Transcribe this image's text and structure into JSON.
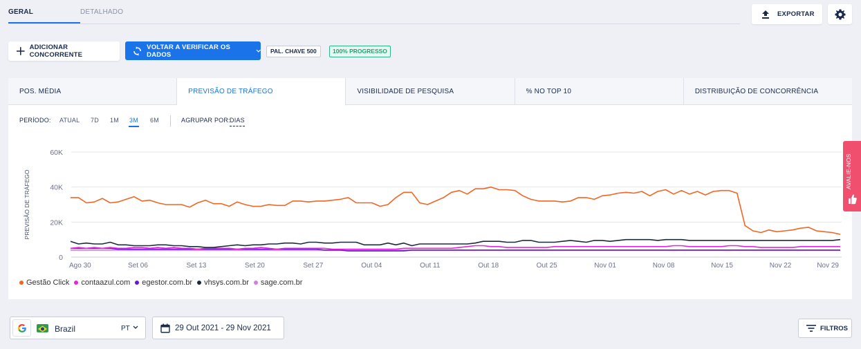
{
  "top_tabs": {
    "geral": "GERAL",
    "detalhado": "DETALHADO"
  },
  "toolbar": {
    "export_label": "EXPORTAR",
    "add_competitor_label": "ADICIONAR CONCORRENTE",
    "reverify_label": "VOLTAR A VERIFICAR OS DADOS",
    "keywords_badge": "PAL. CHAVE 500",
    "progress_badge": "100% PROGRESSO"
  },
  "metric_tabs": [
    "POS. MÉDIA",
    "PREVISÃO DE TRÁFEGO",
    "VISIBILIDADE DE PESQUISA",
    "% NO TOP 10",
    "DISTRIBUIÇÃO DE CONCORRÊNCIA"
  ],
  "active_metric_tab": 1,
  "period": {
    "label": "PERÍODO:",
    "options": [
      "ATUAL",
      "7D",
      "1M",
      "3M",
      "6M"
    ],
    "selected": "3M",
    "group_label": "AGRUPAR POR:",
    "group_value": "DIAS"
  },
  "bottom": {
    "country": "Brazil",
    "language": "PT",
    "date_range": "29 Out 2021 - 29 Nov 2021",
    "filters_label": "FILTROS"
  },
  "feedback_label": "AVALIE-NOS",
  "colors": {
    "accent": "#1a73e8",
    "gestao": "#f26522",
    "contaazul": "#e524e0",
    "egestor": "#6a17d0",
    "vhsys": "#1b2a3a",
    "sage": "#d27ee0"
  },
  "chart_data": {
    "type": "line",
    "ylabel": "PREVISÃO DE TRÁFEGO",
    "xlabel": "",
    "ylim": [
      0,
      60000
    ],
    "yticks": [
      0,
      20000,
      40000,
      60000
    ],
    "ytick_labels": [
      "0",
      "20K",
      "40K",
      "60K"
    ],
    "x_tick_labels": [
      "Ago 30",
      "Set 06",
      "Set 13",
      "Set 20",
      "Set 27",
      "Out 04",
      "Out 11",
      "Out 18",
      "Out 25",
      "Nov 01",
      "Nov 08",
      "Nov 15",
      "Nov 22",
      "Nov 29"
    ],
    "grid": true,
    "legend_position": "bottom-left",
    "series": [
      {
        "name": "Gestão Click",
        "color": "#f26522",
        "values": [
          34000,
          34000,
          31000,
          31500,
          33500,
          31000,
          31500,
          33000,
          34500,
          32000,
          32500,
          31000,
          30000,
          30000,
          30000,
          28500,
          31000,
          32500,
          30500,
          30500,
          29000,
          31500,
          30000,
          29000,
          29000,
          30000,
          29500,
          29500,
          32000,
          32000,
          31500,
          32000,
          32000,
          32500,
          33000,
          34000,
          31000,
          31000,
          31000,
          29000,
          30000,
          34000,
          37000,
          37000,
          31000,
          30000,
          32000,
          34000,
          37000,
          38000,
          36000,
          39000,
          39000,
          40000,
          38500,
          38500,
          38000,
          35000,
          33000,
          32000,
          32000,
          32000,
          31500,
          32000,
          34000,
          34000,
          33000,
          35000,
          35500,
          36500,
          37000,
          36500,
          37500,
          35000,
          37500,
          38500,
          36000,
          38000,
          36000,
          37500,
          35500,
          37500,
          38000,
          38000,
          36500,
          18000,
          15000,
          14000,
          15500,
          14500,
          15000,
          15500,
          16500,
          17000,
          15000,
          14500,
          14000,
          13000
        ]
      },
      {
        "name": "contaazul.com",
        "color": "#e524e0",
        "values": [
          5000,
          5500,
          5000,
          5500,
          5000,
          5500,
          5000,
          5000,
          5500,
          5500,
          5000,
          5500,
          5000,
          5500,
          5000,
          5000,
          4500,
          5000,
          5000,
          5000,
          5000,
          4500,
          5000,
          5000,
          5500,
          5000,
          4500,
          5000,
          5000,
          5000,
          5000,
          5000,
          5000,
          4500,
          4500,
          4500,
          4500,
          4500,
          4500,
          4500,
          4500,
          4500,
          5000,
          5000,
          5000,
          5000,
          5000,
          5000,
          5000,
          5500,
          6000,
          6500,
          6500,
          6000,
          6000,
          5500,
          5500,
          5500,
          5500,
          5500,
          5500,
          6000,
          6000,
          6000,
          6000,
          6000,
          6000,
          6000,
          6000,
          6000,
          6000,
          6000,
          6000,
          6000,
          6000,
          6000,
          6500,
          6500,
          6000,
          6000,
          6000,
          6000,
          6000,
          6500,
          6500,
          6000,
          6000,
          5500,
          5500,
          5500,
          5500,
          5500,
          6000,
          6000,
          6000,
          6000,
          6000,
          6000
        ]
      },
      {
        "name": "egestor.com.br",
        "color": "#6a17d0",
        "values": [
          5000,
          5000,
          5000,
          5000,
          5000,
          5000,
          4500,
          4500,
          4500,
          4500,
          4500,
          4500,
          4500,
          4500,
          4500,
          4500,
          4500,
          4500,
          4500,
          4500,
          4500,
          4500,
          4500,
          4500,
          4500,
          4500,
          4500,
          4500,
          4500,
          4500,
          4500,
          4500,
          4000,
          4000,
          4000,
          3500,
          3500,
          3500,
          3500,
          3500,
          3500,
          3500,
          3500,
          4000,
          4000,
          4000,
          4000,
          4000,
          4000,
          4000,
          4000,
          4000,
          4000,
          4000,
          4000,
          4000,
          4000,
          4000,
          4000,
          4000,
          4000,
          4000,
          4000,
          4000,
          4000,
          4000,
          4000,
          4000,
          4000,
          4000,
          4000,
          4000,
          4000,
          4000,
          4000,
          4000,
          4000,
          4000,
          4000,
          4000,
          4000,
          4000,
          4000,
          4000,
          4000,
          4000,
          4000,
          4000,
          4000,
          4000,
          4000,
          4000,
          4000,
          4000,
          4000,
          4000,
          4000,
          4000
        ]
      },
      {
        "name": "vhsys.com.br",
        "color": "#1b2a3a",
        "values": [
          9000,
          7500,
          8000,
          7500,
          7500,
          8500,
          7000,
          7000,
          6500,
          6500,
          6500,
          7000,
          7000,
          6500,
          6500,
          6000,
          6000,
          5500,
          5500,
          6000,
          6500,
          7000,
          6500,
          7000,
          7000,
          7500,
          7500,
          8000,
          8000,
          7500,
          8500,
          8500,
          8000,
          8000,
          8500,
          8500,
          8500,
          7000,
          7000,
          7000,
          8000,
          7000,
          8000,
          6500,
          7500,
          7500,
          7500,
          7500,
          7500,
          7500,
          7500,
          8000,
          9000,
          9000,
          9000,
          8500,
          8500,
          9500,
          9500,
          8500,
          8500,
          8500,
          9000,
          9500,
          9000,
          8500,
          9500,
          9500,
          9000,
          9500,
          10000,
          10000,
          10000,
          10000,
          9500,
          10000,
          10000,
          10000,
          9500,
          9500,
          9500,
          9500,
          9500,
          9500,
          9500,
          9500,
          9500,
          9500,
          9500,
          9500,
          9500,
          9500,
          9500,
          9500,
          9500,
          9500,
          9500,
          10000
        ]
      },
      {
        "name": "sage.com.br",
        "color": "#d27ee0",
        "values": [
          4000,
          4000,
          4000,
          4000,
          4000,
          4000,
          4000,
          4000,
          4000,
          4000,
          4000,
          4000,
          4000,
          4000,
          4000,
          4000,
          4000,
          4000,
          4000,
          4000,
          4000,
          4000,
          4000,
          4000,
          4000,
          4000,
          4000,
          4000,
          4000,
          4000,
          4000,
          4000,
          4000,
          4000,
          4000,
          4000,
          4000,
          4000,
          4000,
          4000,
          4000,
          4000,
          4000,
          4000,
          4000,
          4000,
          4000,
          4000,
          4000,
          4000,
          4000,
          4000,
          4000,
          4000,
          4000,
          4000,
          4000,
          4000,
          4000,
          4000,
          4000,
          4000,
          4000,
          4000,
          4000,
          4000,
          4000,
          4000,
          4000,
          4000,
          4000,
          4000,
          4000,
          4000,
          4000,
          4000,
          4000,
          4000,
          4000,
          4000,
          4000,
          4000,
          4000,
          4000,
          4000,
          4000,
          4000,
          4000,
          4000,
          4000,
          4000,
          4000,
          4000,
          4000,
          4000,
          4000,
          4000,
          4000
        ]
      }
    ]
  }
}
